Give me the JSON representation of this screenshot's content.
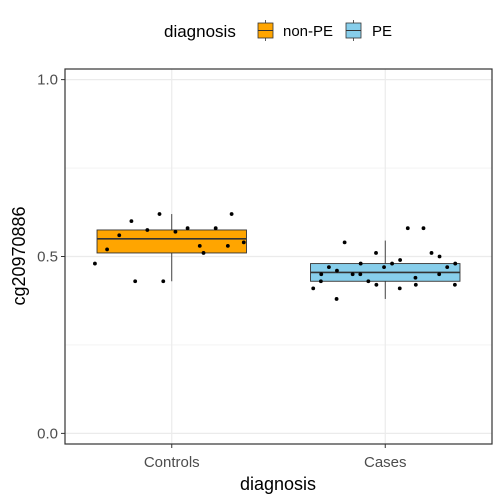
{
  "chart_data": {
    "type": "boxplot",
    "xlabel": "diagnosis",
    "ylabel": "cg20970886",
    "ylim": [
      -0.03,
      1.03
    ],
    "yticks": [
      0.0,
      0.5,
      1.0
    ],
    "ytick_labels": [
      "0.0",
      "0.5",
      "1.0"
    ],
    "grid": true,
    "categories": [
      "Controls",
      "Cases"
    ],
    "legend": {
      "title": "diagnosis",
      "placement": "top",
      "entries": [
        {
          "label": "non-PE",
          "color": "#FFA500"
        },
        {
          "label": "PE",
          "color": "#87CEEB"
        }
      ]
    },
    "series": [
      {
        "category": "Controls",
        "group": "non-PE",
        "color": "#FFA500",
        "box": {
          "q1": 0.51,
          "median": 0.55,
          "q3": 0.575,
          "whisker_low": 0.43,
          "whisker_high": 0.62
        },
        "points": [
          [
            0.48,
            0.48
          ],
          [
            0.52,
            0.52
          ],
          [
            0.56,
            0.56
          ],
          [
            0.48,
            0.6
          ],
          [
            0.43,
            0.43
          ],
          [
            0.57,
            0.575
          ],
          [
            0.62,
            0.62
          ],
          [
            0.43,
            0.43
          ],
          [
            0.57,
            0.57
          ],
          [
            0.58,
            0.58
          ],
          [
            0.53,
            0.53
          ],
          [
            0.51,
            0.51
          ],
          [
            0.58,
            0.58
          ],
          [
            0.53,
            0.53
          ],
          [
            0.62,
            0.62
          ],
          [
            0.54,
            0.54
          ]
        ]
      },
      {
        "category": "Cases",
        "group": "PE",
        "color": "#87CEEB",
        "box": {
          "q1": 0.43,
          "median": 0.455,
          "q3": 0.48,
          "whisker_low": 0.38,
          "whisker_high": 0.545
        },
        "points": [
          [
            0.41,
            0.41
          ],
          [
            0.45,
            0.45
          ],
          [
            0.43,
            0.43
          ],
          [
            0.47,
            0.47
          ],
          [
            0.46,
            0.46
          ],
          [
            0.38,
            0.38
          ],
          [
            0.54,
            0.54
          ],
          [
            0.45,
            0.45
          ],
          [
            0.48,
            0.48
          ],
          [
            0.45,
            0.45
          ],
          [
            0.43,
            0.43
          ],
          [
            0.42,
            0.42
          ],
          [
            0.51,
            0.51
          ],
          [
            0.47,
            0.47
          ],
          [
            0.48,
            0.48
          ],
          [
            0.49,
            0.49
          ],
          [
            0.41,
            0.41
          ],
          [
            0.58,
            0.58
          ],
          [
            0.42,
            0.42
          ],
          [
            0.44,
            0.44
          ],
          [
            0.58,
            0.58
          ],
          [
            0.51,
            0.51
          ],
          [
            0.5,
            0.5
          ],
          [
            0.45,
            0.45
          ],
          [
            0.47,
            0.47
          ],
          [
            0.48,
            0.48
          ],
          [
            0.42,
            0.42
          ]
        ]
      }
    ]
  }
}
